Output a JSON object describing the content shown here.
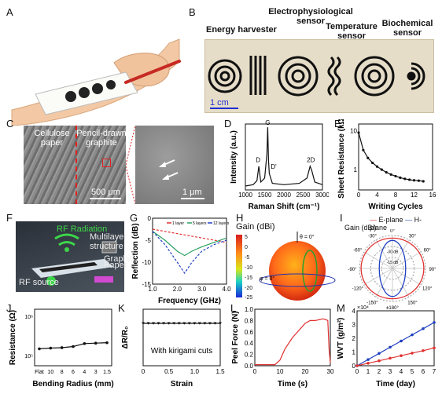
{
  "panels": {
    "A": "A",
    "B": "B",
    "C": "C",
    "D": "D",
    "E": "E",
    "F": "F",
    "G": "G",
    "H": "H",
    "I": "I",
    "J": "J",
    "K": "K",
    "L": "L",
    "M": "M"
  },
  "panel_b": {
    "energy": "Energy harvester",
    "electro1": "Electrophysiological",
    "electro2": "sensor",
    "temp1": "Temperature",
    "temp2": "sensor",
    "bio1": "Biochemical",
    "bio2": "sensor",
    "scale": "1 cm"
  },
  "panel_c": {
    "cell1": "Cellulose",
    "cell2": "paper",
    "pencil1": "Pencil-drawn",
    "pencil2": "graphite",
    "scale1": "500 μm",
    "scale2": "1 μm"
  },
  "panel_f": {
    "rf": "RF Radiation",
    "multi": "Multilayer structure",
    "graphite": "Graphite",
    "paper": "Paper",
    "source": "RF source"
  },
  "panel_h": {
    "gain": "Gain (dBi)",
    "theta": "θ = 0°",
    "phi": "φ = 0°",
    "colorbar": [
      "5",
      "0",
      "-5",
      "-10",
      "-15",
      "-20",
      "-25"
    ]
  },
  "panel_i": {
    "gain": "Gain (dBi)",
    "e": "E-plane",
    "h": "H-plane",
    "angles": [
      "0°",
      "30°",
      "60°",
      "90°",
      "120°",
      "150°",
      "±180°",
      "-150°",
      "-120°",
      "-90°",
      "-60°",
      "-30°"
    ],
    "rings": [
      "-30 dB",
      "-15 dB"
    ]
  },
  "chart_data": [
    {
      "id": "D",
      "type": "line",
      "xlabel": "Raman Shift (cm⁻¹)",
      "ylabel": "Intensity (a.u.)",
      "xlim": [
        1000,
        3000
      ],
      "xticks": [
        "1000",
        "1500",
        "2000",
        "2500",
        "3000"
      ],
      "annotations": [
        "D",
        "G",
        "D'",
        "2D"
      ],
      "series": [
        {
          "x": [
            1000,
            1200,
            1300,
            1350,
            1400,
            1500,
            1560,
            1580,
            1600,
            1620,
            1700,
            2000,
            2400,
            2600,
            2680,
            2720,
            2800,
            3000
          ],
          "y": [
            0.06,
            0.08,
            0.14,
            0.36,
            0.12,
            0.18,
            0.55,
            0.95,
            0.45,
            0.25,
            0.1,
            0.08,
            0.1,
            0.18,
            0.36,
            0.3,
            0.12,
            0.08
          ]
        }
      ]
    },
    {
      "id": "E",
      "type": "line",
      "xlabel": "Writing Cycles",
      "ylabel": "Sheet Resistance (kΩ)",
      "xlim": [
        0,
        16
      ],
      "xticks": [
        "0",
        "4",
        "8",
        "12",
        "16"
      ],
      "yticks": [
        "1",
        "10"
      ],
      "series": [
        {
          "x": [
            0,
            1,
            2,
            3,
            4,
            5,
            6,
            7,
            8,
            9,
            10,
            11,
            12,
            13,
            14
          ],
          "y": [
            9,
            3.2,
            2.0,
            1.5,
            1.2,
            1.0,
            0.85,
            0.75,
            0.68,
            0.62,
            0.58,
            0.55,
            0.53,
            0.52,
            0.5
          ]
        }
      ]
    },
    {
      "id": "G",
      "type": "line",
      "xlabel": "Frequency (GHz)",
      "ylabel": "Reflection (dB)",
      "xlim": [
        1.0,
        4.0
      ],
      "ylim": [
        -15,
        0
      ],
      "xticks": [
        "1.0",
        "2.0",
        "3.0",
        "4.0"
      ],
      "yticks": [
        "0",
        "-5",
        "-10",
        "-15"
      ],
      "series": [
        {
          "name": "1 layer",
          "color": "#e03030",
          "x": [
            1,
            1.5,
            2,
            2.5,
            3,
            3.5,
            4
          ],
          "y": [
            -2.5,
            -3.0,
            -3.5,
            -4.0,
            -4.5,
            -5.0,
            -5.5
          ]
        },
        {
          "name": "5 layers",
          "color": "#2aa060",
          "x": [
            1,
            1.5,
            2,
            2.3,
            2.6,
            3,
            3.5,
            4
          ],
          "y": [
            -3,
            -5,
            -7.5,
            -8.5,
            -7.5,
            -6.5,
            -5.5,
            -4.5
          ]
        },
        {
          "name": "12 layers",
          "color": "#2040c0",
          "x": [
            1,
            1.5,
            2,
            2.3,
            2.6,
            3,
            3.5,
            4
          ],
          "y": [
            -3,
            -6,
            -10,
            -12.5,
            -10,
            -7.5,
            -6,
            -5
          ]
        }
      ]
    },
    {
      "id": "J",
      "type": "line",
      "xlabel": "Bending Radius (mm)",
      "ylabel": "Resistance (Ω)",
      "categories": [
        "Flat",
        "10",
        "8",
        "6",
        "4",
        "3",
        "1.5"
      ],
      "yticks": [
        "10⁶",
        "10⁵"
      ],
      "series": [
        {
          "values": [
            1.75,
            1.78,
            1.8,
            1.85,
            1.98,
            2.0,
            2.02
          ]
        }
      ]
    },
    {
      "id": "K",
      "type": "line",
      "xlabel": "Strain",
      "ylabel": "ΔR/R₀",
      "annotation": "With kirigami cuts",
      "xlim": [
        0,
        1.5
      ],
      "xticks": [
        "0",
        "0.5",
        "1.0",
        "1.5"
      ],
      "series": [
        {
          "x": [
            0,
            0.1,
            0.2,
            0.3,
            0.4,
            0.5,
            0.6,
            0.7,
            0.8,
            0.9,
            1.0,
            1.1,
            1.2,
            1.3,
            1.4,
            1.5
          ],
          "y": [
            0,
            0,
            0,
            0,
            0,
            0,
            0,
            0,
            0,
            0,
            0,
            0,
            0,
            0,
            0,
            0
          ]
        }
      ]
    },
    {
      "id": "L",
      "type": "line",
      "xlabel": "Time (s)",
      "ylabel": "Peel Force (N)",
      "xlim": [
        0,
        30
      ],
      "ylim": [
        0,
        1.0
      ],
      "xticks": [
        "0",
        "10",
        "20",
        "30"
      ],
      "yticks": [
        "0.0",
        "0.2",
        "0.4",
        "0.6",
        "0.8",
        "1.0"
      ],
      "series": [
        {
          "color": "#e03030",
          "x": [
            0,
            5,
            8,
            10,
            12,
            15,
            18,
            20,
            22,
            24,
            26,
            27,
            28,
            29,
            29.5,
            30
          ],
          "y": [
            0.02,
            0.02,
            0.02,
            0.1,
            0.3,
            0.5,
            0.65,
            0.75,
            0.8,
            0.8,
            0.82,
            0.83,
            0.82,
            0.8,
            0.3,
            0.05
          ]
        }
      ]
    },
    {
      "id": "M",
      "type": "line",
      "xlabel": "Time (day)",
      "ylabel": "WVT (g/m²)",
      "yexp": "×10⁴",
      "xlim": [
        0,
        7
      ],
      "ylim": [
        0,
        4
      ],
      "xticks": [
        "0",
        "1",
        "2",
        "3",
        "4",
        "5",
        "6",
        "7"
      ],
      "yticks": [
        "0",
        "1",
        "2",
        "3",
        "4"
      ],
      "series": [
        {
          "color": "#2040c0",
          "x": [
            0,
            1,
            2,
            3,
            4,
            5,
            6,
            7
          ],
          "y": [
            0,
            0.45,
            0.9,
            1.35,
            1.8,
            2.25,
            2.7,
            3.15
          ]
        },
        {
          "color": "#e03030",
          "x": [
            0,
            1,
            2,
            3,
            4,
            5,
            6,
            7
          ],
          "y": [
            0,
            0.18,
            0.36,
            0.55,
            0.73,
            0.92,
            1.1,
            1.3
          ]
        }
      ]
    }
  ]
}
